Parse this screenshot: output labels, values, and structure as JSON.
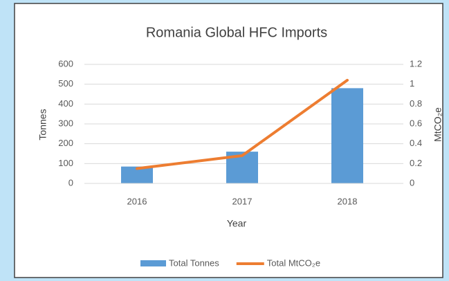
{
  "chart_data": {
    "type": "bar-line",
    "title": "Romania Global HFC Imports",
    "x_label": "Year",
    "y_label": "Tonnes",
    "y2_label": "MtCO₂e",
    "categories": [
      "2016",
      "2017",
      "2018"
    ],
    "series": [
      {
        "name": "Total Tonnes",
        "color": "#5b9bd5",
        "type": "bar",
        "values": [
          85,
          160,
          480
        ]
      },
      {
        "name": "Total MtCO₂e",
        "color": "#ed7d31",
        "type": "line",
        "axis": "y2",
        "values": [
          0.15,
          0.28,
          1.04
        ]
      }
    ],
    "ylim": [
      0,
      600
    ],
    "yticks": [
      0,
      100,
      200,
      300,
      400,
      500,
      600
    ],
    "y2lim": [
      0,
      1.2
    ],
    "y2ticks": [
      0,
      0.2,
      0.4,
      0.6,
      0.8,
      1,
      1.2
    ],
    "grid": true,
    "legend": "bottom"
  }
}
